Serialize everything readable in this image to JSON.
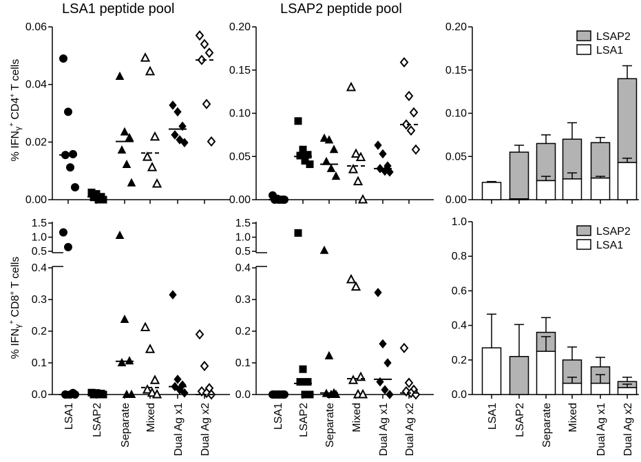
{
  "column_titles": [
    "LSA1 peptide pool",
    "LSAP2 peptide pool"
  ],
  "row_labels": {
    "top": {
      "pre": "% IFN",
      "gamma": "γ",
      "sup1": "+",
      "cd": " CD4",
      "sup2": "+",
      "post": " T cells"
    },
    "bottom": {
      "pre": "% IFN",
      "gamma": "γ",
      "sup1": "+",
      "cd": " CD8",
      "sup2": "+",
      "post": " T cells"
    }
  },
  "categories": [
    "LSA1",
    "LSAP2",
    "Separate",
    "Mixed",
    "Dual Ag x1",
    "Dual Ag x2"
  ],
  "colors": {
    "lsap2_fill": "#b3b3b3",
    "lsa1_fill": "#ffffff",
    "ink": "#000000"
  },
  "chart_data": [
    {
      "type": "scatter",
      "panel": "top-left",
      "title": "LSA1 peptide pool",
      "ylim": [
        0,
        0.06
      ],
      "yticks": [
        "0.00",
        "0.02",
        "0.04",
        "0.06"
      ],
      "markers": [
        "circle-filled",
        "square-filled",
        "triangle-filled",
        "triangle-open",
        "diamond-filled",
        "diamond-open"
      ],
      "points": [
        [
          0.049,
          0.0305,
          0.0158,
          0.0155,
          0.0112,
          0.0043
        ],
        [
          0.0025,
          0.002,
          0.001,
          0.0008,
          0.0,
          0.0
        ],
        [
          0.0428,
          0.0235,
          0.0215,
          0.0172,
          0.0122,
          0.0058
        ],
        [
          0.0492,
          0.0445,
          0.0218,
          0.0148,
          0.0112,
          0.0055
        ],
        [
          0.0328,
          0.0305,
          0.0255,
          0.0225,
          0.0208,
          0.0198
        ],
        [
          0.057,
          0.054,
          0.051,
          0.0485,
          0.0332,
          0.0202
        ]
      ],
      "medians": [
        0.0155,
        0.001,
        0.0202,
        0.0162,
        0.0245,
        0.0485
      ],
      "median_style": [
        "solid",
        "solid",
        "solid",
        "dashed",
        "solid",
        "dashed"
      ]
    },
    {
      "type": "scatter",
      "panel": "top-middle",
      "title": "LSAP2 peptide pool",
      "ylim": [
        0,
        0.2
      ],
      "yticks": [
        "0.00",
        "0.05",
        "0.10",
        "0.15",
        "0.20"
      ],
      "markers": [
        "circle-filled",
        "square-filled",
        "triangle-filled",
        "triangle-open",
        "diamond-filled",
        "diamond-open"
      ],
      "points": [
        [
          0.005,
          0.001,
          0.0,
          0.0,
          0.0,
          0.0
        ],
        [
          0.091,
          0.058,
          0.052,
          0.051,
          0.045,
          0.041
        ],
        [
          0.071,
          0.069,
          0.058,
          0.044,
          0.036,
          0.027
        ],
        [
          0.13,
          0.053,
          0.049,
          0.035,
          0.021,
          0.0
        ],
        [
          0.063,
          0.053,
          0.039,
          0.036,
          0.033,
          0.032
        ],
        [
          0.159,
          0.12,
          0.101,
          0.087,
          0.08,
          0.058
        ]
      ],
      "medians": [
        0.0,
        0.05,
        0.041,
        0.039,
        0.036,
        0.087
      ],
      "median_style": [
        "solid",
        "solid",
        "solid",
        "dashed",
        "solid",
        "dashed"
      ]
    },
    {
      "type": "bar",
      "stacked": true,
      "panel": "top-right",
      "ylim": [
        0,
        0.2
      ],
      "yticks": [
        "0.00",
        "0.05",
        "0.10",
        "0.15",
        "0.20"
      ],
      "legend": [
        "LSAP2",
        "LSA1"
      ],
      "legend_position": "top-right",
      "series": [
        {
          "name": "LSA1",
          "values": [
            0.02,
            0.001,
            0.022,
            0.024,
            0.025,
            0.043
          ],
          "errors": [
            0.001,
            0.0,
            0.005,
            0.007,
            0.002,
            0.005
          ]
        },
        {
          "name": "LSAP2",
          "values": [
            0.0,
            0.054,
            0.043,
            0.046,
            0.041,
            0.097
          ],
          "errors": [
            0.006,
            0.008,
            0.01,
            0.019,
            0.006,
            0.015
          ]
        }
      ]
    },
    {
      "type": "scatter",
      "panel": "bottom-left",
      "broken_axis": true,
      "ylim_lower": [
        0,
        0.4
      ],
      "ylim_upper": [
        0.5,
        1.5
      ],
      "yticks": [
        "0.0",
        "0.1",
        "0.2",
        "0.3",
        "0.4",
        "0.5",
        "1.0",
        "1.5"
      ],
      "markers": [
        "circle-filled",
        "square-filled",
        "triangle-filled",
        "triangle-open",
        "diamond-filled",
        "diamond-open"
      ],
      "points": [
        [
          1.17,
          0.65,
          0.005,
          0.0,
          0.0,
          0.0,
          0.0
        ],
        [
          0.006,
          0.005,
          0.003,
          0.0,
          0.0,
          0.0
        ],
        [
          1.06,
          0.237,
          0.106,
          0.1,
          0.0,
          0.0
        ],
        [
          0.212,
          0.143,
          0.045,
          0.015,
          0.005,
          0.0
        ],
        [
          0.315,
          0.048,
          0.03,
          0.025,
          0.015,
          0.005
        ],
        [
          0.19,
          0.09,
          0.02,
          0.01,
          0.005,
          0.0
        ]
      ],
      "medians": [
        0.0,
        0.0,
        0.105,
        0.022,
        0.025,
        0.0
      ],
      "median_style": [
        "solid",
        "solid",
        "solid",
        "dashed",
        "solid",
        "dashed"
      ]
    },
    {
      "type": "scatter",
      "panel": "bottom-middle",
      "broken_axis": true,
      "ylim_lower": [
        0,
        0.4
      ],
      "ylim_upper": [
        0.5,
        1.5
      ],
      "yticks": [
        "0.0",
        "0.1",
        "0.2",
        "0.3",
        "0.4",
        "0.5",
        "1.0",
        "1.5"
      ],
      "markers": [
        "circle-filled",
        "square-filled",
        "triangle-filled",
        "triangle-open",
        "diamond-filled",
        "diamond-open"
      ],
      "points": [
        [
          0.0,
          0.0,
          0.0,
          0.0,
          0.0,
          0.0
        ],
        [
          1.15,
          0.08,
          0.04,
          0.04,
          0.0,
          0.0
        ],
        [
          0.53,
          0.122,
          0.005,
          0.003,
          0.0,
          0.0
        ],
        [
          0.363,
          0.34,
          0.055,
          0.045,
          0.0,
          0.0
        ],
        [
          0.322,
          0.16,
          0.1,
          0.04,
          0.015,
          0.0
        ],
        [
          0.147,
          0.037,
          0.015,
          0.01,
          0.005,
          0.0
        ]
      ],
      "medians": [
        0.0,
        0.035,
        0.005,
        0.05,
        0.048,
        0.005
      ],
      "median_style": [
        "solid",
        "solid",
        "solid",
        "dashed",
        "solid",
        "dashed"
      ]
    },
    {
      "type": "bar",
      "stacked": true,
      "panel": "bottom-right",
      "ylim": [
        0,
        1.0
      ],
      "yticks": [
        "0.0",
        "0.2",
        "0.4",
        "0.6",
        "0.8",
        "1.0"
      ],
      "legend": [
        "LSAP2",
        "LSA1"
      ],
      "legend_position": "top-right",
      "series": [
        {
          "name": "LSA1",
          "values": [
            0.27,
            0.0,
            0.25,
            0.065,
            0.065,
            0.04
          ],
          "errors": [
            0.195,
            0.0,
            0.085,
            0.035,
            0.05,
            0.02
          ]
        },
        {
          "name": "LSAP2",
          "values": [
            0.0,
            0.22,
            0.11,
            0.135,
            0.095,
            0.035
          ],
          "errors": [
            0.0,
            0.185,
            0.085,
            0.075,
            0.055,
            0.025
          ]
        }
      ]
    }
  ]
}
